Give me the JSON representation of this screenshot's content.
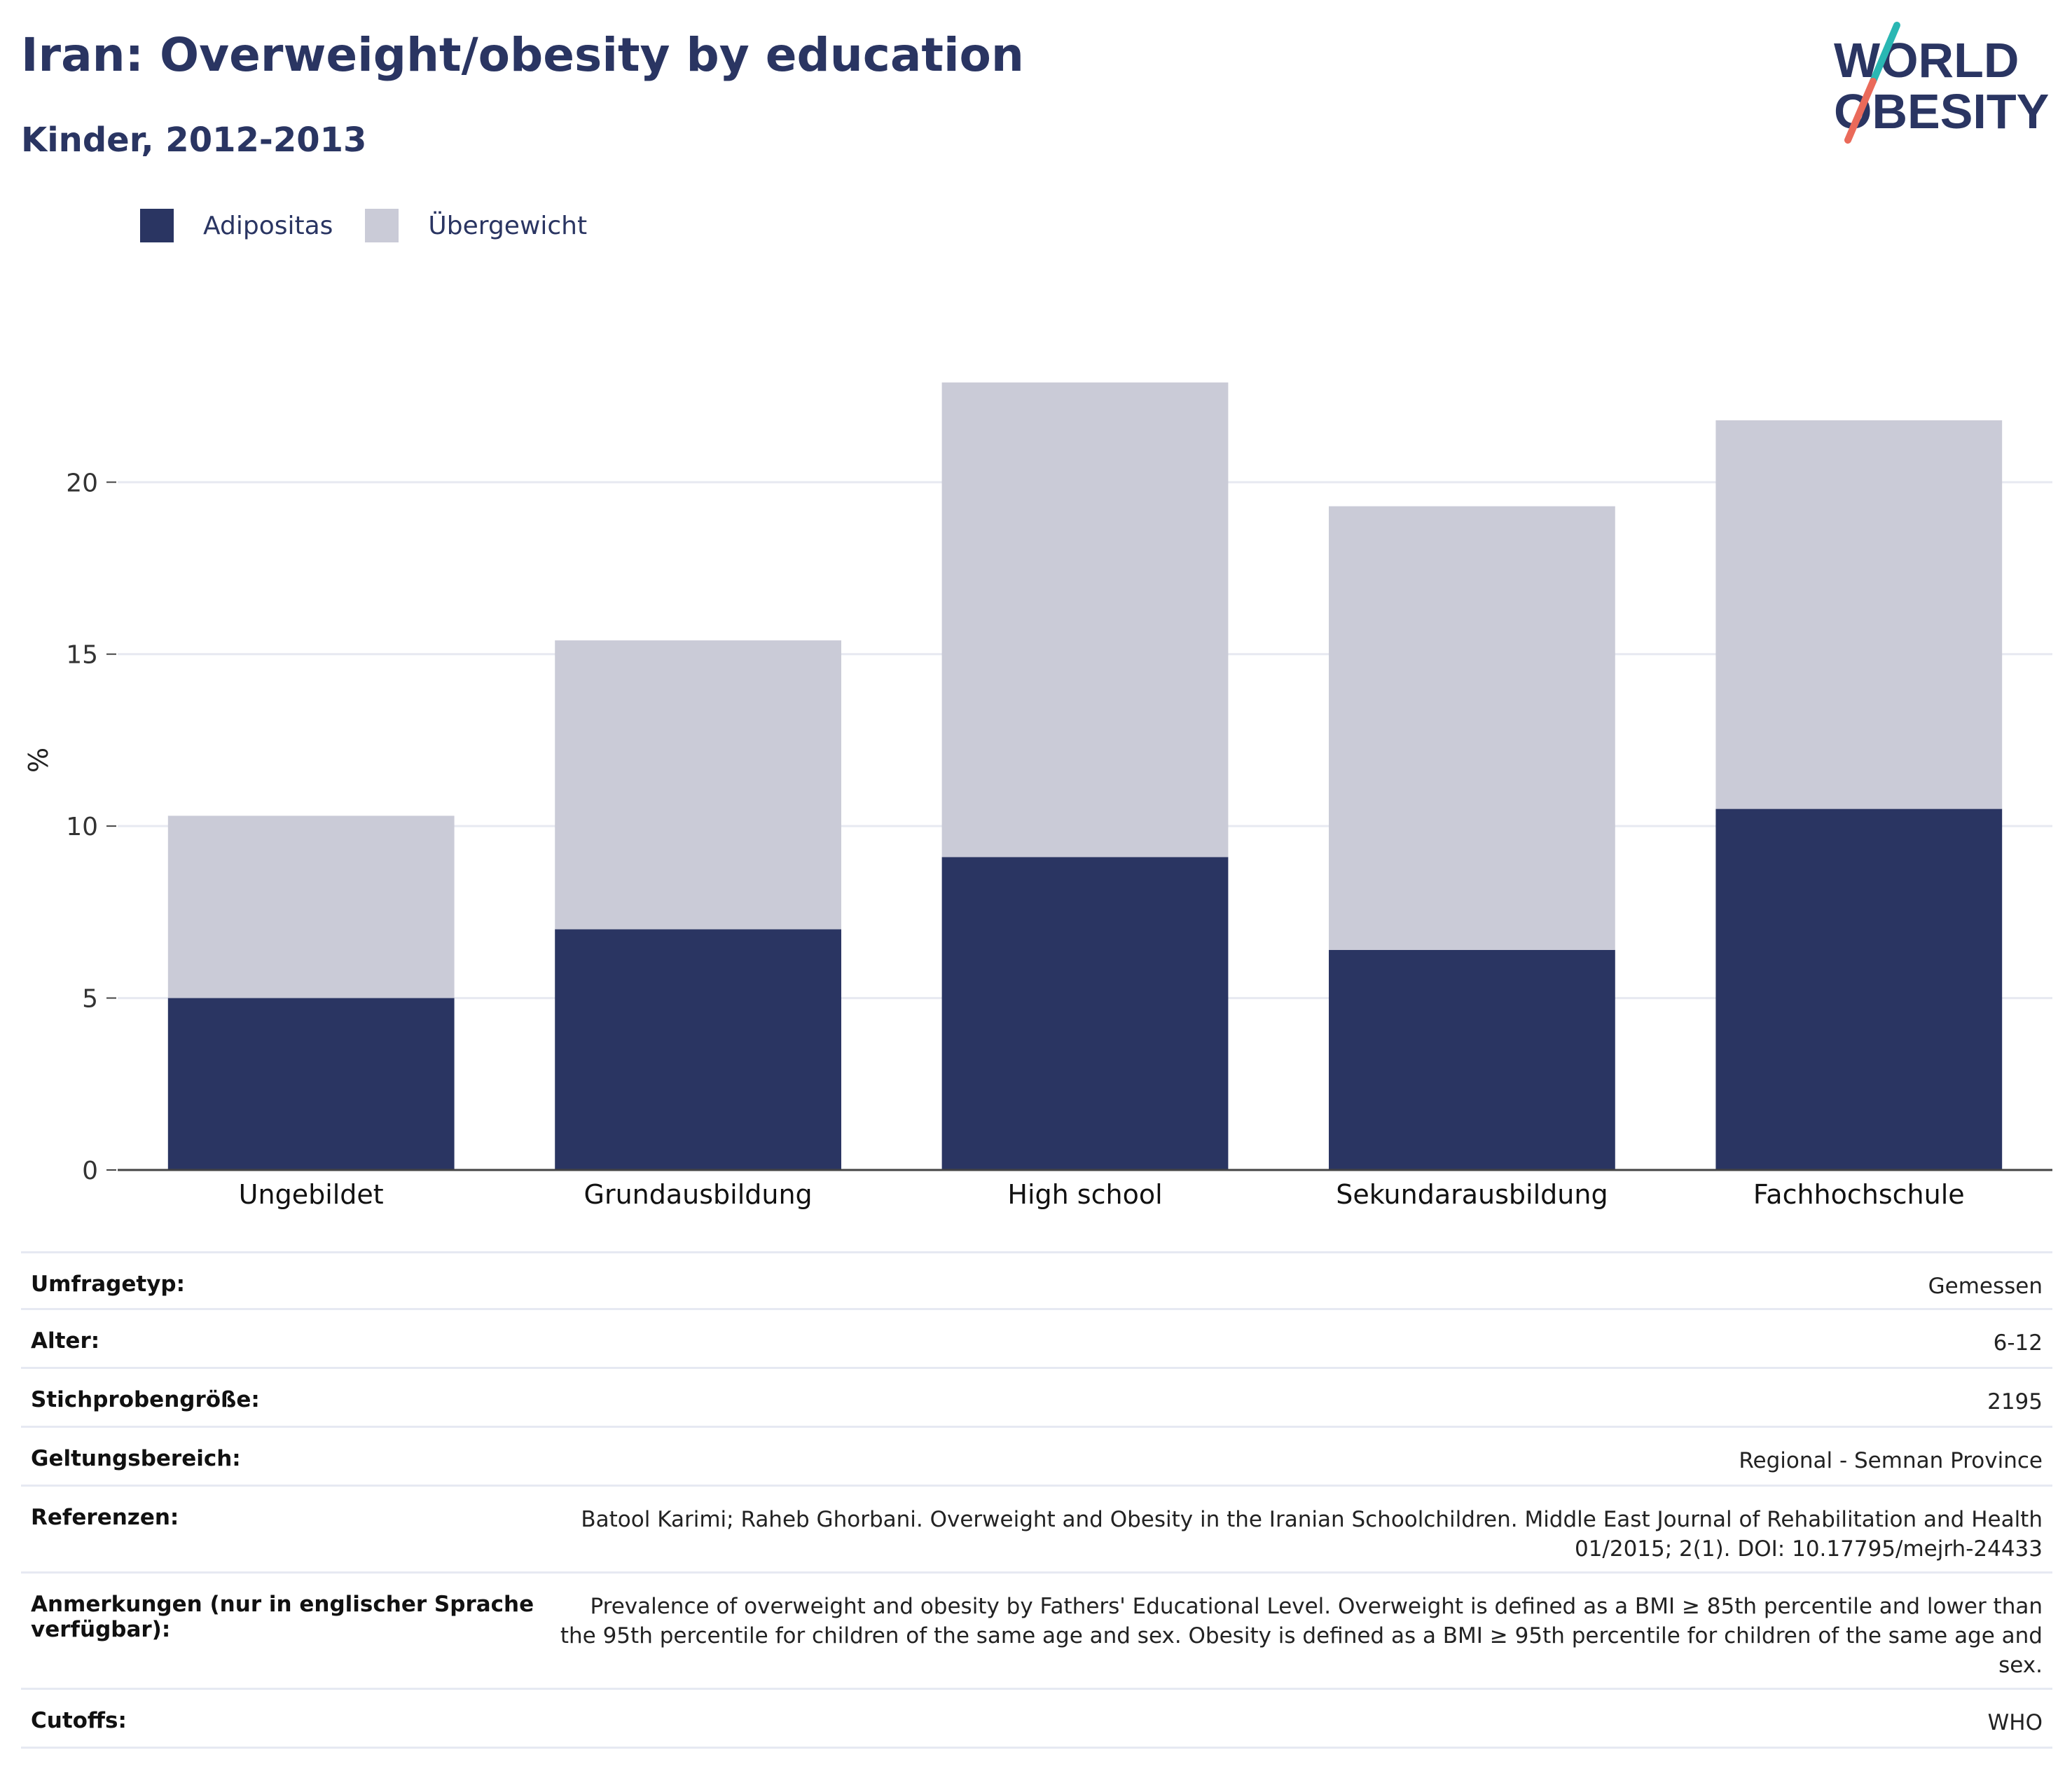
{
  "header": {
    "title": "Iran: Overweight/obesity by education",
    "subtitle": "Kinder, 2012-2013"
  },
  "logo": {
    "line1": "WORLD",
    "line2": "OBESITY",
    "colors": {
      "text": "#2a3562",
      "slash_teal": "#2ab7b3",
      "slash_coral": "#ea6a5a"
    }
  },
  "legend": {
    "items": [
      {
        "label": "Adipositas",
        "color": "#2a3562"
      },
      {
        "label": "Übergewicht",
        "color": "#cacbd7"
      }
    ]
  },
  "chart_data": {
    "type": "bar",
    "stacked": true,
    "categories": [
      "Ungebildet",
      "Grundausbildung",
      "High school",
      "Sekundarausbildung",
      "Fachhochschule"
    ],
    "series": [
      {
        "name": "Adipositas",
        "color": "#2a3562",
        "values": [
          5.0,
          7.0,
          9.1,
          6.4,
          10.5
        ]
      },
      {
        "name": "Übergewicht",
        "color": "#cacbd7",
        "values": [
          5.3,
          8.4,
          13.8,
          12.9,
          11.3
        ]
      }
    ],
    "ylabel": "%",
    "ylim": [
      0,
      23
    ],
    "yticks": [
      0,
      5,
      10,
      15,
      20
    ],
    "grid": true,
    "legend_position": "top-left"
  },
  "info_table": {
    "rows": [
      {
        "label": "Umfragetyp:",
        "value": "Gemessen"
      },
      {
        "label": "Alter:",
        "value": "6-12"
      },
      {
        "label": "Stichprobengröße:",
        "value": "2195"
      },
      {
        "label": "Geltungsbereich:",
        "value": "Regional - Semnan Province"
      },
      {
        "label": "Referenzen:",
        "value": "Batool Karimi; Raheb Ghorbani. Overweight and Obesity in the Iranian Schoolchildren. Middle East Journal of Rehabilitation and Health 01/2015; 2(1). DOI: 10.17795/mejrh-24433"
      },
      {
        "label": "Anmerkungen (nur in englischer Sprache verfügbar):",
        "value": "Prevalence of overweight and obesity by Fathers' Educational Level. Overweight is defined as a BMI ≥ 85th percentile and lower than the 95th percentile for children of the same age and sex. Obesity is defined as a BMI ≥ 95th percentile for children of the same age and sex."
      },
      {
        "label": "Cutoffs:",
        "value": "WHO"
      }
    ]
  }
}
